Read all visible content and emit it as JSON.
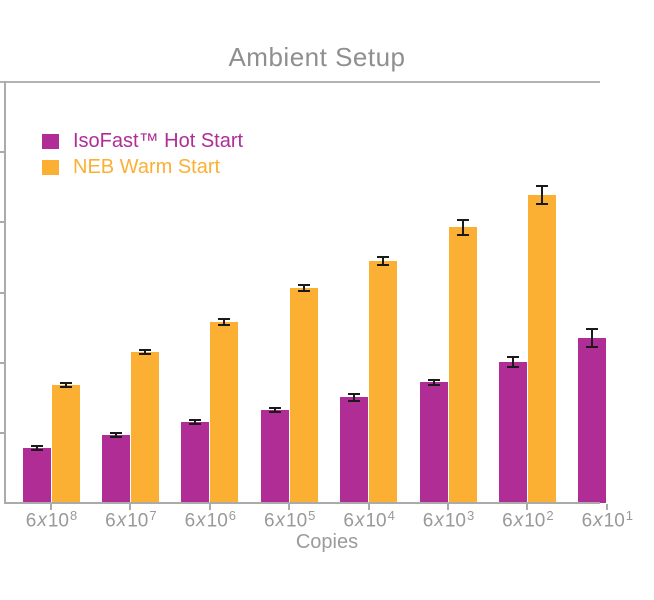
{
  "chart_data": {
    "type": "bar",
    "title": "Ambient Setup",
    "xlabel": "Copies",
    "ylabel": "",
    "categories": [
      "6x10^8",
      "6x10^7",
      "6x10^6",
      "6x10^5",
      "6x10^4",
      "6x10^3",
      "6x10^2",
      "6x10^1"
    ],
    "series": [
      {
        "name": "IsoFast™ Hot Start",
        "color": "#B12D96",
        "values": [
          0.78,
          0.97,
          1.15,
          1.33,
          1.51,
          1.72,
          2.01,
          2.35
        ],
        "errors": [
          0.03,
          0.03,
          0.03,
          0.03,
          0.05,
          0.04,
          0.07,
          0.13
        ]
      },
      {
        "name": "NEB Warm Start",
        "color": "#FBB034",
        "values": [
          1.68,
          2.15,
          2.58,
          3.06,
          3.45,
          3.93,
          4.39,
          null
        ],
        "errors": [
          0.03,
          0.03,
          0.04,
          0.04,
          0.06,
          0.11,
          0.13,
          null
        ]
      }
    ],
    "y_axis": {
      "visible_tick_intervals": 6,
      "tick_labels_visible": false,
      "note": "y-axis tick labels are cropped outside the visible frame; values given in axis tick-interval units"
    },
    "x_axis": {
      "last_category_partially_cropped": true
    },
    "legend_position": "top-left inside plot",
    "grid": false,
    "error_bars": true,
    "colors": {
      "error_bar": "#1A1A1A",
      "axis": "#ABABAB",
      "tick_text": "#999999",
      "title_text": "#8F8F8F"
    }
  }
}
